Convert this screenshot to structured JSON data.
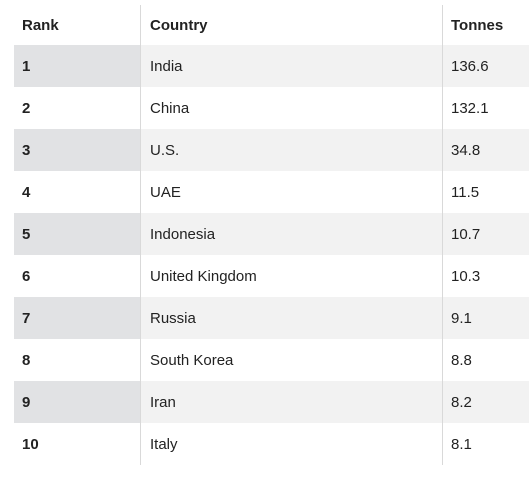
{
  "table": {
    "headers": {
      "rank": "Rank",
      "country": "Country",
      "tonnes": "Tonnes"
    },
    "rows": [
      {
        "rank": "1",
        "country": "India",
        "tonnes": "136.6"
      },
      {
        "rank": "2",
        "country": "China",
        "tonnes": "132.1"
      },
      {
        "rank": "3",
        "country": "U.S.",
        "tonnes": "34.8"
      },
      {
        "rank": "4",
        "country": "UAE",
        "tonnes": "11.5"
      },
      {
        "rank": "5",
        "country": "Indonesia",
        "tonnes": "10.7"
      },
      {
        "rank": "6",
        "country": "United Kingdom",
        "tonnes": "10.3"
      },
      {
        "rank": "7",
        "country": "Russia",
        "tonnes": "9.1"
      },
      {
        "rank": "8",
        "country": "South Korea",
        "tonnes": "8.8"
      },
      {
        "rank": "9",
        "country": "Iran",
        "tonnes": "8.2"
      },
      {
        "rank": "10",
        "country": "Italy",
        "tonnes": "8.1"
      }
    ]
  },
  "colors": {
    "stripe": "#f2f2f2",
    "rank_stripe": "#e1e2e4",
    "divider": "#d9d9d9",
    "text": "#222222"
  }
}
